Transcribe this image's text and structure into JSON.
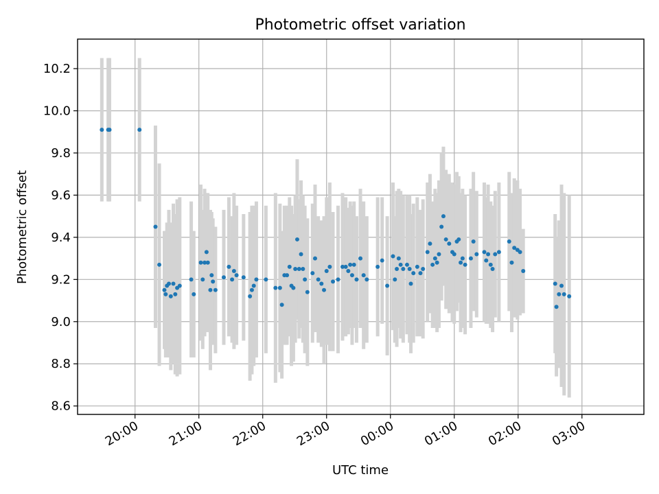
{
  "colors": {
    "marker": "#1f77b4",
    "errorbar": "#d3d3d3",
    "grid": "#b0b0b0",
    "background": "#ffffff"
  },
  "chart_data": {
    "type": "scatter",
    "title": "Photometric offset variation",
    "xlabel": "UTC time",
    "ylabel": "Photometric offset",
    "x_axis": {
      "kind": "time",
      "range_hours": [
        19.1,
        27.97
      ]
    },
    "ylim": [
      8.56,
      10.34
    ],
    "grid": true,
    "xticks": [
      {
        "hour": 20,
        "label": "20:00"
      },
      {
        "hour": 21,
        "label": "21:00"
      },
      {
        "hour": 22,
        "label": "22:00"
      },
      {
        "hour": 23,
        "label": "23:00"
      },
      {
        "hour": 24,
        "label": "00:00"
      },
      {
        "hour": 25,
        "label": "01:00"
      },
      {
        "hour": 26,
        "label": "02:00"
      },
      {
        "hour": 27,
        "label": "03:00"
      }
    ],
    "yticks": [
      {
        "value": 8.6,
        "label": "8.6"
      },
      {
        "value": 8.8,
        "label": "8.8"
      },
      {
        "value": 9.0,
        "label": "9.0"
      },
      {
        "value": 9.2,
        "label": "9.2"
      },
      {
        "value": 9.4,
        "label": "9.4"
      },
      {
        "value": 9.6,
        "label": "9.6"
      },
      {
        "value": 9.8,
        "label": "9.8"
      },
      {
        "value": 10.0,
        "label": "10.0"
      },
      {
        "value": 10.2,
        "label": "10.2"
      }
    ],
    "points": [
      [
        19.48,
        9.91,
        0.34
      ],
      [
        19.58,
        9.91,
        0.34
      ],
      [
        19.6,
        9.91,
        0.34
      ],
      [
        20.07,
        9.91,
        0.34
      ],
      [
        20.32,
        9.45,
        0.48
      ],
      [
        20.38,
        9.27,
        0.48
      ],
      [
        20.46,
        9.15,
        0.28
      ],
      [
        20.48,
        9.13,
        0.3
      ],
      [
        20.5,
        9.17,
        0.3
      ],
      [
        20.53,
        9.18,
        0.35
      ],
      [
        20.56,
        9.12,
        0.35
      ],
      [
        20.6,
        9.18,
        0.38
      ],
      [
        20.63,
        9.13,
        0.38
      ],
      [
        20.66,
        9.16,
        0.42
      ],
      [
        20.7,
        9.17,
        0.42
      ],
      [
        20.88,
        9.2,
        0.37
      ],
      [
        20.92,
        9.13,
        0.3
      ],
      [
        21.03,
        9.28,
        0.37
      ],
      [
        21.06,
        9.2,
        0.33
      ],
      [
        21.09,
        9.28,
        0.35
      ],
      [
        21.12,
        9.33,
        0.28
      ],
      [
        21.14,
        9.28,
        0.33
      ],
      [
        21.18,
        9.15,
        0.38
      ],
      [
        21.2,
        9.22,
        0.3
      ],
      [
        21.22,
        9.19,
        0.3
      ],
      [
        21.26,
        9.15,
        0.3
      ],
      [
        21.39,
        9.21,
        0.32
      ],
      [
        21.47,
        9.26,
        0.33
      ],
      [
        21.52,
        9.2,
        0.3
      ],
      [
        21.55,
        9.24,
        0.37
      ],
      [
        21.59,
        9.22,
        0.33
      ],
      [
        21.7,
        9.21,
        0.3
      ],
      [
        21.8,
        9.12,
        0.4
      ],
      [
        21.83,
        9.15,
        0.4
      ],
      [
        21.86,
        9.17,
        0.38
      ],
      [
        21.9,
        9.2,
        0.37
      ],
      [
        22.05,
        9.2,
        0.35
      ],
      [
        22.2,
        9.16,
        0.45
      ],
      [
        22.27,
        9.16,
        0.4
      ],
      [
        22.3,
        9.08,
        0.35
      ],
      [
        22.34,
        9.22,
        0.33
      ],
      [
        22.38,
        9.22,
        0.33
      ],
      [
        22.42,
        9.26,
        0.33
      ],
      [
        22.45,
        9.17,
        0.38
      ],
      [
        22.48,
        9.16,
        0.35
      ],
      [
        22.51,
        9.25,
        0.35
      ],
      [
        22.54,
        9.39,
        0.38
      ],
      [
        22.57,
        9.25,
        0.33
      ],
      [
        22.6,
        9.32,
        0.35
      ],
      [
        22.63,
        9.25,
        0.35
      ],
      [
        22.66,
        9.2,
        0.35
      ],
      [
        22.7,
        9.14,
        0.35
      ],
      [
        22.78,
        9.23,
        0.33
      ],
      [
        22.82,
        9.3,
        0.35
      ],
      [
        22.87,
        9.2,
        0.3
      ],
      [
        22.92,
        9.18,
        0.3
      ],
      [
        22.96,
        9.15,
        0.35
      ],
      [
        23.0,
        9.24,
        0.35
      ],
      [
        23.05,
        9.26,
        0.4
      ],
      [
        23.1,
        9.19,
        0.33
      ],
      [
        23.18,
        9.2,
        0.35
      ],
      [
        23.25,
        9.26,
        0.35
      ],
      [
        23.3,
        9.26,
        0.33
      ],
      [
        23.34,
        9.24,
        0.3
      ],
      [
        23.37,
        9.27,
        0.3
      ],
      [
        23.4,
        9.22,
        0.33
      ],
      [
        23.43,
        9.27,
        0.3
      ],
      [
        23.47,
        9.2,
        0.3
      ],
      [
        23.53,
        9.3,
        0.33
      ],
      [
        23.58,
        9.22,
        0.35
      ],
      [
        23.63,
        9.2,
        0.3
      ],
      [
        23.8,
        9.26,
        0.33
      ],
      [
        23.87,
        9.29,
        0.3
      ],
      [
        23.95,
        9.17,
        0.33
      ],
      [
        24.04,
        9.31,
        0.35
      ],
      [
        24.07,
        9.2,
        0.3
      ],
      [
        24.1,
        9.25,
        0.37
      ],
      [
        24.13,
        9.3,
        0.33
      ],
      [
        24.16,
        9.27,
        0.35
      ],
      [
        24.2,
        9.25,
        0.35
      ],
      [
        24.26,
        9.27,
        0.33
      ],
      [
        24.3,
        9.25,
        0.35
      ],
      [
        24.32,
        9.18,
        0.33
      ],
      [
        24.36,
        9.23,
        0.33
      ],
      [
        24.42,
        9.26,
        0.33
      ],
      [
        24.47,
        9.23,
        0.3
      ],
      [
        24.51,
        9.25,
        0.33
      ],
      [
        24.58,
        9.33,
        0.33
      ],
      [
        24.62,
        9.37,
        0.33
      ],
      [
        24.66,
        9.27,
        0.3
      ],
      [
        24.7,
        9.3,
        0.33
      ],
      [
        24.73,
        9.28,
        0.33
      ],
      [
        24.76,
        9.32,
        0.35
      ],
      [
        24.8,
        9.45,
        0.35
      ],
      [
        24.83,
        9.5,
        0.33
      ],
      [
        24.87,
        9.39,
        0.33
      ],
      [
        24.92,
        9.37,
        0.33
      ],
      [
        24.97,
        9.33,
        0.33
      ],
      [
        25.0,
        9.32,
        0.33
      ],
      [
        25.04,
        9.38,
        0.33
      ],
      [
        25.07,
        9.39,
        0.3
      ],
      [
        25.1,
        9.28,
        0.33
      ],
      [
        25.13,
        9.3,
        0.33
      ],
      [
        25.17,
        9.27,
        0.33
      ],
      [
        25.26,
        9.3,
        0.33
      ],
      [
        25.3,
        9.38,
        0.33
      ],
      [
        25.35,
        9.32,
        0.3
      ],
      [
        25.47,
        9.33,
        0.33
      ],
      [
        25.5,
        9.29,
        0.3
      ],
      [
        25.53,
        9.32,
        0.33
      ],
      [
        25.57,
        9.27,
        0.3
      ],
      [
        25.6,
        9.25,
        0.3
      ],
      [
        25.64,
        9.32,
        0.3
      ],
      [
        25.7,
        9.33,
        0.33
      ],
      [
        25.86,
        9.38,
        0.33
      ],
      [
        25.9,
        9.28,
        0.33
      ],
      [
        25.94,
        9.35,
        0.33
      ],
      [
        25.99,
        9.34,
        0.33
      ],
      [
        26.03,
        9.33,
        0.3
      ],
      [
        26.08,
        9.24,
        0.2
      ],
      [
        26.58,
        9.18,
        0.33
      ],
      [
        26.6,
        9.07,
        0.33
      ],
      [
        26.64,
        9.13,
        0.35
      ],
      [
        26.68,
        9.17,
        0.48
      ],
      [
        26.72,
        9.13,
        0.48
      ],
      [
        26.8,
        9.12,
        0.48
      ]
    ]
  }
}
